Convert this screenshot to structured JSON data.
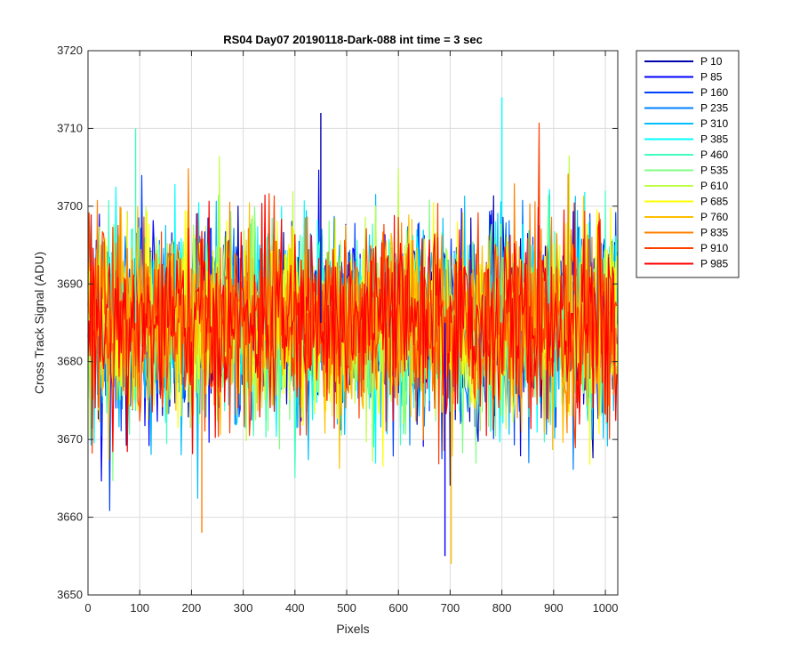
{
  "chart_data": {
    "type": "line",
    "title": "RS04 Day07 20190118-Dark-088 int time = 3 sec",
    "xlabel": "Pixels",
    "ylabel": "Cross Track Signal (ADU)",
    "xlim": [
      0,
      1024
    ],
    "ylim": [
      3650,
      3720
    ],
    "xticks": [
      0,
      100,
      200,
      300,
      400,
      500,
      600,
      700,
      800,
      900,
      1000
    ],
    "yticks": [
      3650,
      3660,
      3670,
      3680,
      3690,
      3700,
      3710,
      3720
    ],
    "xtick_labels": [
      "0",
      "100",
      "200",
      "300",
      "400",
      "500",
      "600",
      "700",
      "800",
      "900",
      "1000"
    ],
    "ytick_labels": [
      "3650",
      "3660",
      "3670",
      "3680",
      "3690",
      "3700",
      "3710",
      "3720"
    ],
    "grid": true,
    "legend_position": "outside-top-right",
    "noise": {
      "mean": 3685,
      "approx_std": 6
    },
    "series": [
      {
        "name": "P 10",
        "color": "#0000aa"
      },
      {
        "name": "P 85",
        "color": "#0000ff"
      },
      {
        "name": "P 160",
        "color": "#0040ff"
      },
      {
        "name": "P 235",
        "color": "#0080ff"
      },
      {
        "name": "P 310",
        "color": "#00bfff"
      },
      {
        "name": "P 385",
        "color": "#00ffff"
      },
      {
        "name": "P 460",
        "color": "#40ffbf"
      },
      {
        "name": "P 535",
        "color": "#80ff80"
      },
      {
        "name": "P 610",
        "color": "#bfff40"
      },
      {
        "name": "P 685",
        "color": "#ffff00"
      },
      {
        "name": "P 760",
        "color": "#ffbf00"
      },
      {
        "name": "P 835",
        "color": "#ff8000"
      },
      {
        "name": "P 910",
        "color": "#ff4000"
      },
      {
        "name": "P 985",
        "color": "#ff0000"
      }
    ],
    "annotated_extremes": [
      {
        "x": 450,
        "y": 3712
      },
      {
        "x": 800,
        "y": 3714
      },
      {
        "x": 702,
        "y": 3654
      },
      {
        "x": 690,
        "y": 3655
      },
      {
        "x": 92,
        "y": 3710
      },
      {
        "x": 220,
        "y": 3658
      }
    ]
  }
}
